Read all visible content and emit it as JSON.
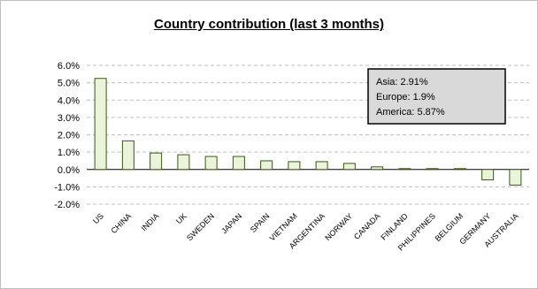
{
  "chart_data": {
    "type": "bar",
    "title": "Country contribution (last 3 months)",
    "categories": [
      "US",
      "CHINA",
      "INDIA",
      "UK",
      "SWEDEN",
      "JAPAN",
      "SPAIN",
      "VIETNAM",
      "ARGENTINA",
      "NORWAY",
      "CANADA",
      "FINLAND",
      "PHILIPPINES",
      "BELGIUM",
      "GERMANY",
      "AUSTRALIA"
    ],
    "values": [
      5.25,
      1.65,
      0.95,
      0.85,
      0.75,
      0.75,
      0.5,
      0.45,
      0.45,
      0.35,
      0.15,
      0.05,
      0.05,
      0.05,
      -0.6,
      -0.9
    ],
    "ylim": [
      -2.0,
      6.0
    ],
    "yticks": [
      "6.0%",
      "5.0%",
      "4.0%",
      "3.0%",
      "2.0%",
      "1.0%",
      "0.0%",
      "-1.0%",
      "-2.0%"
    ],
    "ytick_values": [
      6,
      5,
      4,
      3,
      2,
      1,
      0,
      -1,
      -2
    ],
    "grid": true,
    "annotations": [
      "Asia: 2.91%",
      "Europe: 1.9%",
      "America: 5.87%"
    ],
    "bar_fill": "#eaf4d8",
    "bar_stroke": "#3a5a10"
  }
}
